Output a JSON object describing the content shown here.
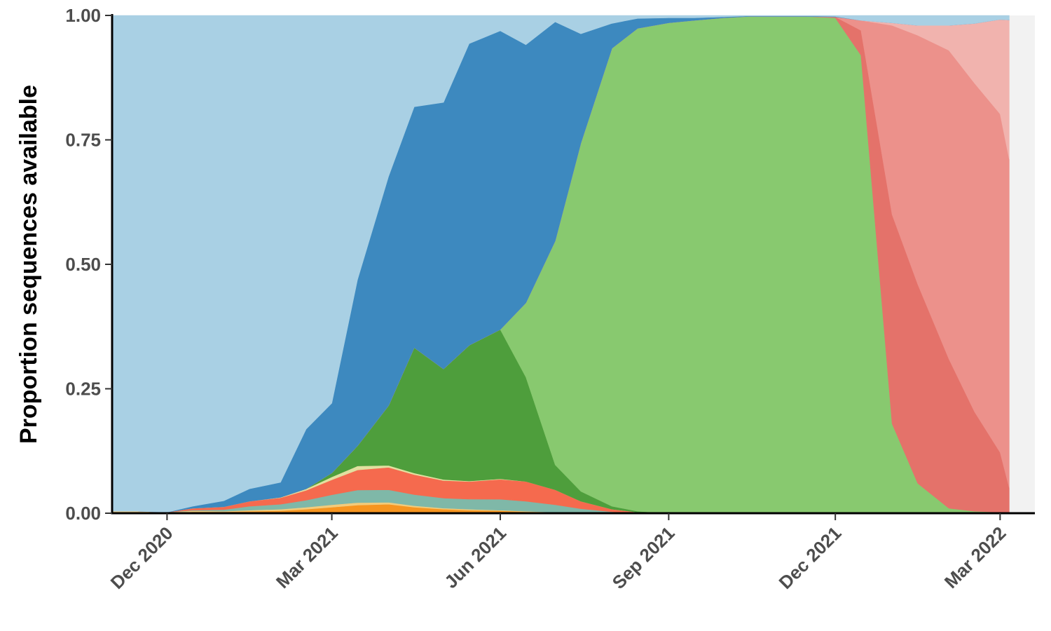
{
  "chart_data": {
    "type": "area",
    "stacked": true,
    "normalized": true,
    "title": "",
    "xlabel": "",
    "ylabel": "Proportion sequences available",
    "xlim": [
      "2020-11-01",
      "2022-03-20"
    ],
    "ylim": [
      0,
      1
    ],
    "grid": false,
    "legend": "none",
    "x_ticks": [
      {
        "date": "2020-12-01",
        "label": "Dec 2020"
      },
      {
        "date": "2021-03-01",
        "label": "Mar 2021"
      },
      {
        "date": "2021-06-01",
        "label": "Jun 2021"
      },
      {
        "date": "2021-09-01",
        "label": "Sep 2021"
      },
      {
        "date": "2021-12-01",
        "label": "Dec 2021"
      },
      {
        "date": "2022-03-01",
        "label": "Mar 2022"
      }
    ],
    "y_ticks": [
      {
        "value": 0,
        "label": "0.00"
      },
      {
        "value": 0.25,
        "label": "0.25"
      },
      {
        "value": 0.5,
        "label": "0.50"
      },
      {
        "value": 0.75,
        "label": "0.75"
      },
      {
        "value": 1,
        "label": "1.00"
      }
    ],
    "x": [
      "2020-11-01",
      "2020-11-15",
      "2020-12-01",
      "2020-12-15",
      "2021-01-01",
      "2021-01-15",
      "2021-02-01",
      "2021-02-15",
      "2021-03-01",
      "2021-03-15",
      "2021-04-01",
      "2021-04-15",
      "2021-05-01",
      "2021-05-15",
      "2021-06-01",
      "2021-06-15",
      "2021-07-01",
      "2021-07-15",
      "2021-08-01",
      "2021-08-15",
      "2021-09-01",
      "2021-09-15",
      "2021-10-01",
      "2021-10-15",
      "2021-11-01",
      "2021-11-15",
      "2021-12-01",
      "2021-12-15",
      "2022-01-01",
      "2022-01-15",
      "2022-02-01",
      "2022-02-15",
      "2022-03-01",
      "2022-03-06"
    ],
    "series": [
      {
        "color": "#f7951f",
        "values": [
          0,
          0,
          0,
          0.003,
          0.003,
          0.004,
          0.005,
          0.008,
          0.012,
          0.016,
          0.018,
          0.012,
          0.008,
          0.006,
          0.005,
          0.003,
          0.002,
          0.001,
          0,
          0,
          0,
          0,
          0,
          0,
          0,
          0,
          0,
          0,
          0,
          0,
          0,
          0,
          0,
          0
        ]
      },
      {
        "color": "#f2cb7b",
        "values": [
          0.004,
          0.004,
          0.002,
          0.002,
          0.001,
          0.002,
          0.003,
          0.004,
          0.005,
          0.005,
          0.004,
          0.003,
          0.002,
          0.002,
          0.001,
          0.001,
          0,
          0,
          0,
          0,
          0,
          0,
          0,
          0,
          0,
          0,
          0,
          0,
          0,
          0,
          0,
          0,
          0,
          0
        ]
      },
      {
        "color": "#7fb8a8",
        "values": [
          0,
          0,
          0,
          0.001,
          0.003,
          0.008,
          0.01,
          0.014,
          0.02,
          0.025,
          0.025,
          0.022,
          0.02,
          0.02,
          0.022,
          0.02,
          0.015,
          0.008,
          0.003,
          0,
          0,
          0,
          0,
          0,
          0,
          0,
          0,
          0,
          0,
          0,
          0,
          0,
          0,
          0
        ]
      },
      {
        "color": "#f56a4e",
        "values": [
          0,
          0,
          0,
          0.004,
          0.006,
          0.01,
          0.013,
          0.02,
          0.03,
          0.04,
          0.045,
          0.04,
          0.035,
          0.035,
          0.04,
          0.04,
          0.03,
          0.015,
          0.005,
          0.002,
          0,
          0,
          0,
          0,
          0,
          0,
          0,
          0,
          0,
          0,
          0,
          0,
          0,
          0
        ]
      },
      {
        "color": "#e2e0a0",
        "values": [
          0,
          0,
          0,
          0,
          0,
          0,
          0.001,
          0.003,
          0.006,
          0.008,
          0.004,
          0.003,
          0.002,
          0.001,
          0.001,
          0,
          0,
          0,
          0,
          0,
          0,
          0,
          0,
          0,
          0,
          0,
          0,
          0,
          0,
          0,
          0,
          0,
          0,
          0
        ]
      },
      {
        "color": "#4e9e3c",
        "values": [
          0,
          0,
          0,
          0,
          0,
          0,
          0,
          0,
          0.008,
          0.04,
          0.12,
          0.25,
          0.22,
          0.27,
          0.3,
          0.21,
          0.05,
          0.02,
          0.006,
          0.002,
          0,
          0,
          0,
          0,
          0,
          0,
          0,
          0,
          0,
          0,
          0,
          0,
          0,
          0
        ]
      },
      {
        "color": "#88c96f",
        "values": [
          0,
          0,
          0,
          0,
          0,
          0,
          0,
          0,
          0,
          0,
          0,
          0,
          0,
          0,
          0,
          0.15,
          0.45,
          0.7,
          0.92,
          0.97,
          0.985,
          0.99,
          0.995,
          0.998,
          0.998,
          0.998,
          0.995,
          0.92,
          0.18,
          0.06,
          0.01,
          0.004,
          0.002,
          0.001
        ]
      },
      {
        "color": "#e4726a",
        "values": [
          0,
          0,
          0,
          0,
          0,
          0,
          0,
          0,
          0,
          0,
          0,
          0,
          0,
          0,
          0,
          0,
          0,
          0,
          0,
          0,
          0,
          0,
          0,
          0,
          0,
          0,
          0.002,
          0.05,
          0.42,
          0.4,
          0.3,
          0.2,
          0.12,
          0.05
        ]
      },
      {
        "color": "#ec918b",
        "values": [
          0,
          0,
          0,
          0,
          0,
          0,
          0,
          0,
          0,
          0,
          0,
          0,
          0,
          0,
          0,
          0,
          0,
          0,
          0,
          0,
          0,
          0,
          0,
          0,
          0,
          0,
          0,
          0.02,
          0.38,
          0.5,
          0.62,
          0.66,
          0.68,
          0.66
        ]
      },
      {
        "color": "#f1b3ae",
        "values": [
          0,
          0,
          0,
          0,
          0,
          0,
          0,
          0,
          0,
          0,
          0,
          0,
          0,
          0,
          0,
          0,
          0,
          0,
          0,
          0,
          0,
          0,
          0,
          0,
          0,
          0,
          0,
          0,
          0.005,
          0.02,
          0.05,
          0.12,
          0.19,
          0.28
        ]
      },
      {
        "color": "#3d89bf",
        "values": [
          0,
          0,
          0,
          0.004,
          0.012,
          0.025,
          0.03,
          0.12,
          0.14,
          0.33,
          0.46,
          0.48,
          0.53,
          0.6,
          0.6,
          0.52,
          0.44,
          0.22,
          0.05,
          0.02,
          0.01,
          0.005,
          0.002,
          0.001,
          0.001,
          0.001,
          0.001,
          0,
          0,
          0,
          0,
          0,
          0,
          0
        ]
      },
      {
        "color": "#a9d0e4",
        "values": [
          0.996,
          0.996,
          0.998,
          0.986,
          0.975,
          0.951,
          0.938,
          0.831,
          0.779,
          0.526,
          0.323,
          0.182,
          0.173,
          0.056,
          0.031,
          0.059,
          0.013,
          0.037,
          0.016,
          0.006,
          0.005,
          0.005,
          0.003,
          0.001,
          0.001,
          0.001,
          0.002,
          0.01,
          0.015,
          0.02,
          0.02,
          0.016,
          0.008,
          0.009
        ]
      }
    ]
  }
}
